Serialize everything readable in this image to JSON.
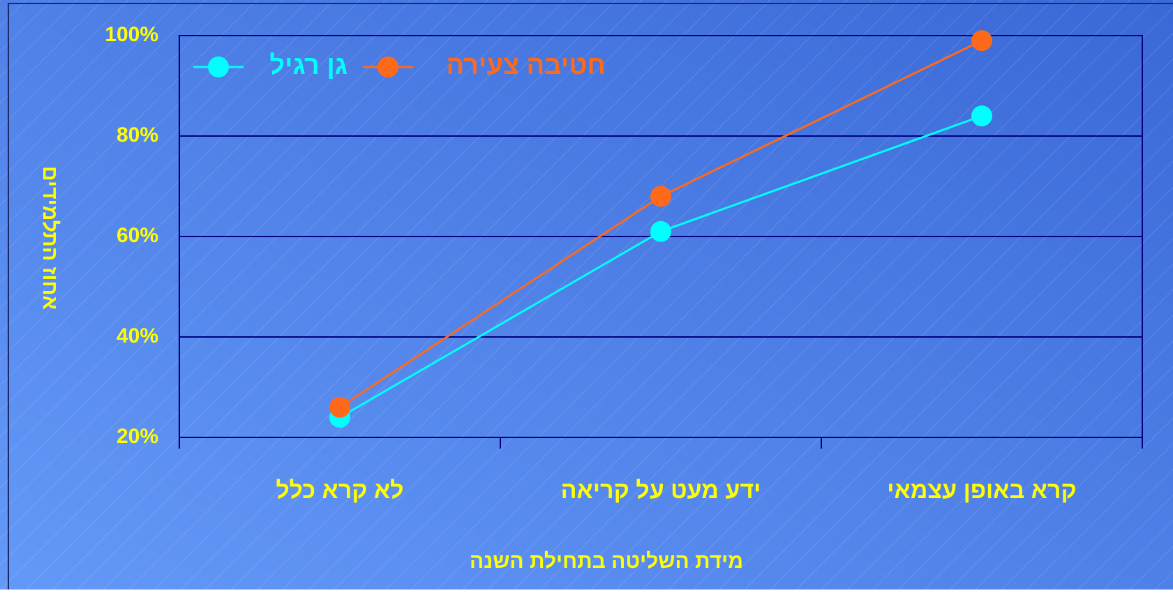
{
  "chart_data": {
    "type": "line",
    "categories": [
      "לא קרא כלל",
      "ידע מעט על קריאה",
      "קרא באופן עצמאי"
    ],
    "series": [
      {
        "name": "גן רגיל",
        "color": "#00ffff",
        "values": [
          24,
          61,
          84
        ]
      },
      {
        "name": "חטיבה צעירה",
        "color": "#ff6a1a",
        "values": [
          26,
          68,
          99
        ]
      }
    ],
    "ylim": [
      20,
      100
    ],
    "yticks": [
      {
        "value": 20,
        "label": "20%"
      },
      {
        "value": 40,
        "label": "40%"
      },
      {
        "value": 60,
        "label": "60%"
      },
      {
        "value": 80,
        "label": "80%"
      },
      {
        "value": 100,
        "label": "100%"
      }
    ],
    "ylabel": "אחוז התלמידים",
    "xlabel": "מידת השליטה בתחילת השנה",
    "grid": true,
    "legend": "top-left"
  }
}
